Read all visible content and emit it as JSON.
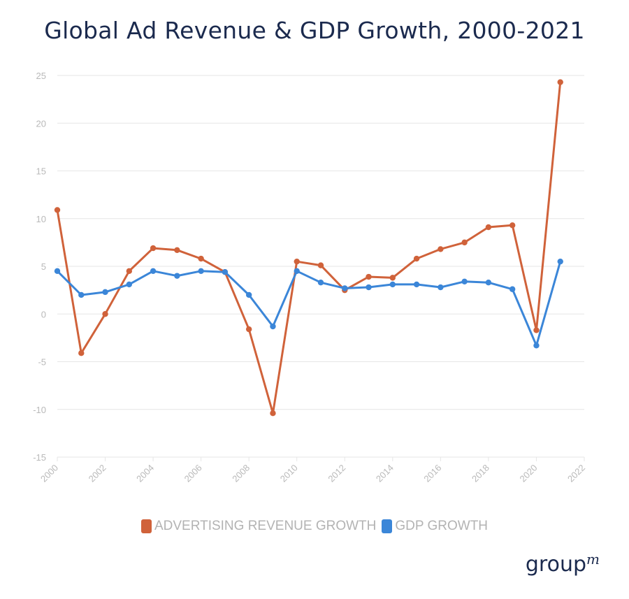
{
  "colors": {
    "adv": "#d0623a",
    "gdp": "#3b86d8",
    "grid": "#e6e6e6",
    "tick": "#b9b9b9"
  },
  "brand": {
    "text": "group",
    "sup": "m"
  },
  "chart_data": {
    "type": "line",
    "title": "Global Ad Revenue & GDP Growth, 2000-2021",
    "xlabel": "",
    "ylabel": "",
    "xlim": [
      2000,
      2022
    ],
    "ylim": [
      -15,
      25
    ],
    "x_ticks": [
      2000,
      2002,
      2004,
      2006,
      2008,
      2010,
      2012,
      2014,
      2016,
      2018,
      2020,
      2022
    ],
    "y_ticks": [
      -15,
      -10,
      -5,
      0,
      5,
      10,
      15,
      20,
      25
    ],
    "grid": true,
    "legend": "bottom",
    "x": [
      2000,
      2001,
      2002,
      2003,
      2004,
      2005,
      2006,
      2007,
      2008,
      2009,
      2010,
      2011,
      2012,
      2013,
      2014,
      2015,
      2016,
      2017,
      2018,
      2019,
      2020,
      2021
    ],
    "series": [
      {
        "name": "ADVERTISING REVENUE GROWTH",
        "color": "#d0623a",
        "values": [
          10.9,
          -4.1,
          0,
          4.5,
          6.9,
          6.7,
          5.8,
          4.4,
          -1.6,
          -10.4,
          5.5,
          5.1,
          2.5,
          3.9,
          3.8,
          5.8,
          6.8,
          7.5,
          9.1,
          9.3,
          -1.7,
          24.3
        ]
      },
      {
        "name": "GDP GROWTH",
        "color": "#3b86d8",
        "values": [
          4.5,
          2.0,
          2.3,
          3.1,
          4.5,
          4.0,
          4.5,
          4.4,
          2.0,
          -1.3,
          4.5,
          3.3,
          2.7,
          2.8,
          3.1,
          3.1,
          2.8,
          3.4,
          3.3,
          2.6,
          -3.3,
          5.5
        ]
      }
    ]
  }
}
